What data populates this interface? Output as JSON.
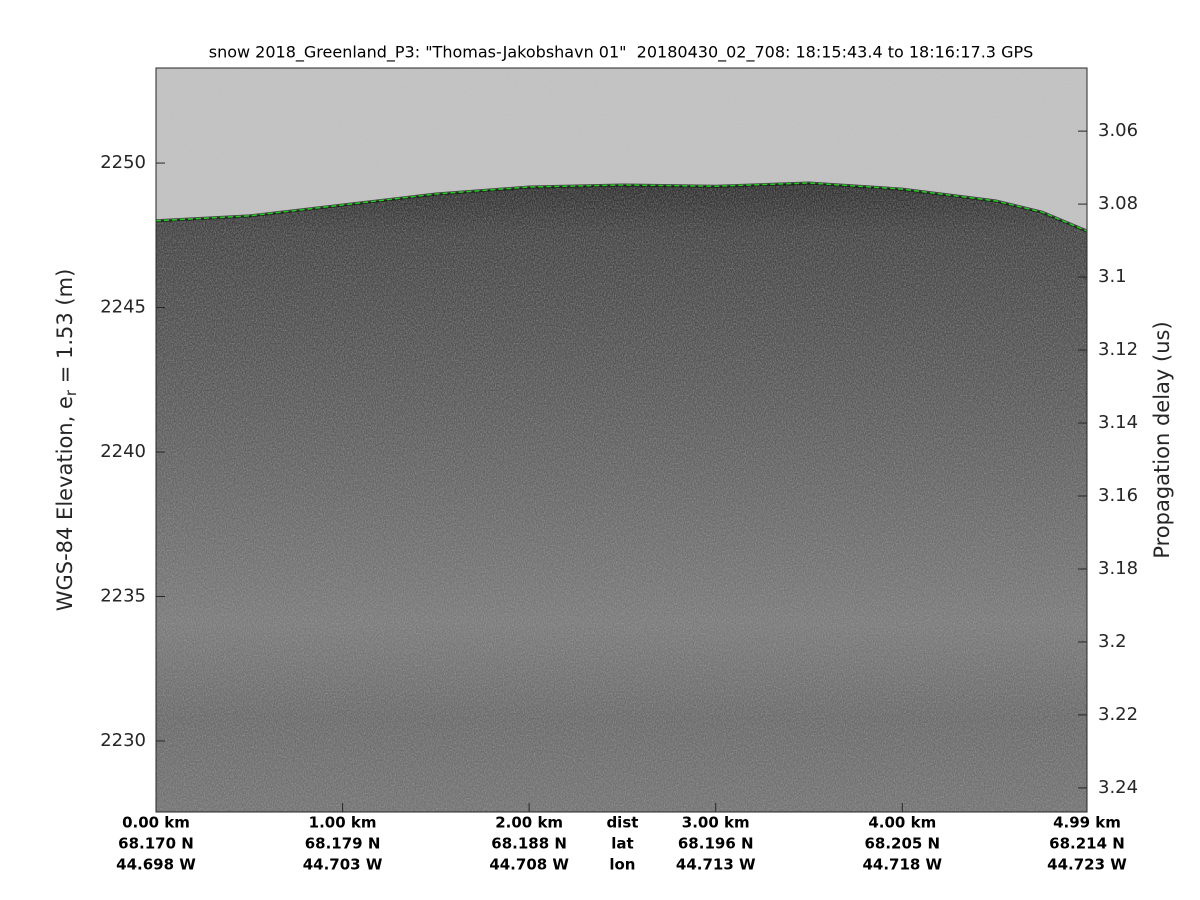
{
  "chart_data": {
    "type": "echogram",
    "title": "snow 2018_Greenland_P3: \"Thomas-Jakobshavn 01\"  20180430_02_708: 18:15:43.4 to 18:16:17.3 GPS",
    "ylabel": "WGS-84 Elevation, e",
    "ylabel_sub": "r",
    "ylabel_rest": " = 1.53 (m)",
    "y2label": "Propagation delay (us)",
    "xlim": [
      0,
      4.99
    ],
    "xticks": [
      {
        "value": 0,
        "label": "0.00 km"
      },
      {
        "value": 1,
        "label": "1.00 km"
      },
      {
        "value": 2,
        "label": "2.00 km"
      },
      {
        "value": 3,
        "label": "3.00 km"
      },
      {
        "value": 4,
        "label": "4.00 km"
      },
      {
        "value": 4.99,
        "label": "4.99 km"
      }
    ],
    "xtick_lat": [
      "68.170 N",
      "68.179 N",
      "68.188 N",
      "68.196 N",
      "68.205 N",
      "68.214 N"
    ],
    "xtick_lon": [
      "44.698 W",
      "44.703 W",
      "44.708 W",
      "44.713 W",
      "44.718 W",
      "44.723 W"
    ],
    "xtick_row_labels": [
      "dist",
      "lat",
      "lon"
    ],
    "xtick_row_labels_x": 2.5,
    "ylim": [
      2227.54,
      2253.29
    ],
    "yticks": [
      2230,
      2235,
      2240,
      2245,
      2250
    ],
    "y2lim": [
      3.2466,
      3.0427
    ],
    "y2ticks": [
      3.06,
      3.08,
      3.1,
      3.12,
      3.14,
      3.16,
      3.18,
      3.2,
      3.22,
      3.24
    ],
    "x": [
      0,
      0.5,
      1.0,
      1.5,
      2.0,
      2.5,
      3.0,
      3.5,
      4.0,
      4.5,
      4.75,
      4.99
    ],
    "series": [
      {
        "color": "#22cc22",
        "values": [
          2248.0,
          2248.17,
          2248.55,
          2248.93,
          2249.17,
          2249.24,
          2249.2,
          2249.31,
          2249.1,
          2248.69,
          2248.3,
          2247.65
        ]
      }
    ]
  }
}
